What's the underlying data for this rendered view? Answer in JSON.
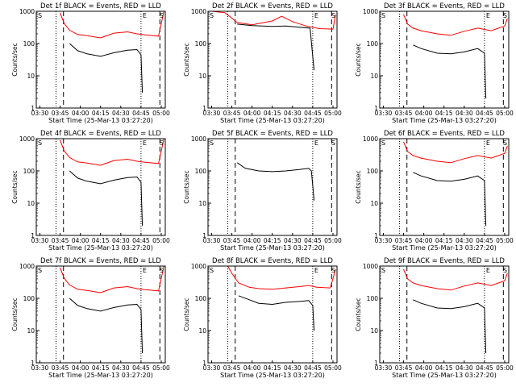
{
  "x_ticks": [
    "03:30",
    "03:45",
    "04:00",
    "04:15",
    "04:30",
    "04:45",
    "05:00"
  ],
  "y_ticks": [
    "1000",
    "100",
    "10",
    "1"
  ],
  "xlabel": "Start Time (25-Mar-13 03:27:20)",
  "ylabel": "Counts/sec",
  "markers": {
    "start": "S",
    "end": "E"
  },
  "colors": {
    "events": "#000000",
    "lld": "#ff0000"
  },
  "chart_data": [
    {
      "type": "line",
      "title": "Det 1f BLACK = Events, RED = LLD",
      "xlabel": "Start Time (25-Mar-13 03:27:20)",
      "ylabel": "Counts/sec",
      "xlim": [
        "03:27:20",
        "05:03:00"
      ],
      "ylim": [
        1,
        1000
      ],
      "yscale": "log",
      "series": [
        {
          "x": [
            "03:45",
            "03:48",
            "03:52",
            "03:58",
            "04:05",
            "04:15",
            "04:25",
            "04:35",
            "04:42",
            "04:45",
            "04:46",
            "04:47"
          ],
          "values": [
            null,
            null,
            100,
            60,
            48,
            40,
            52,
            62,
            65,
            45,
            3,
            null
          ]
        },
        {
          "x": [
            "03:45",
            "03:48",
            "03:52",
            "03:58",
            "04:05",
            "04:15",
            "04:25",
            "04:35",
            "04:42",
            "04:48",
            "04:58",
            "05:02"
          ],
          "values": [
            900,
            420,
            260,
            190,
            175,
            150,
            210,
            230,
            200,
            185,
            170,
            1000
          ]
        }
      ]
    },
    {
      "type": "line",
      "title": "Det 2f BLACK = Events, RED = LLD",
      "xlabel": "Start Time (25-Mar-13 03:27:20)",
      "ylabel": "Counts/sec",
      "xlim": [
        "03:27:20",
        "05:03:00"
      ],
      "ylim": [
        1,
        1000
      ],
      "yscale": "log",
      "series": [
        {
          "x": [
            "03:45",
            "03:49",
            "04:00",
            "04:15",
            "04:25",
            "04:35",
            "04:43",
            "04:45",
            "04:46"
          ],
          "values": [
            null,
            400,
            360,
            340,
            350,
            320,
            300,
            40,
            15
          ]
        },
        {
          "x": [
            "03:30",
            "03:40",
            "03:49",
            "04:00",
            "04:15",
            "04:22",
            "04:30",
            "04:40",
            "04:50",
            "05:00",
            "05:02"
          ],
          "values": [
            1000,
            900,
            450,
            380,
            500,
            700,
            480,
            350,
            290,
            280,
            800
          ]
        }
      ]
    },
    {
      "type": "line",
      "title": "Det 3f BLACK = Events, RED = LLD",
      "xlabel": "Start Time (25-Mar-13 03:27:20)",
      "ylabel": "Counts/sec",
      "xlim": [
        "03:27:20",
        "05:03:00"
      ],
      "ylim": [
        1,
        1000
      ],
      "yscale": "log",
      "series": [
        {
          "x": [
            "03:45",
            "03:48",
            "03:52",
            "03:58",
            "04:10",
            "04:20",
            "04:30",
            "04:40",
            "04:45",
            "04:46"
          ],
          "values": [
            null,
            null,
            90,
            70,
            50,
            48,
            55,
            70,
            50,
            2
          ]
        },
        {
          "x": [
            "03:45",
            "03:48",
            "03:52",
            "03:58",
            "04:10",
            "04:20",
            "04:30",
            "04:40",
            "04:50",
            "05:00",
            "05:02"
          ],
          "values": [
            800,
            400,
            300,
            250,
            200,
            180,
            240,
            300,
            250,
            350,
            600
          ]
        }
      ]
    },
    {
      "type": "line",
      "title": "Det 4f BLACK = Events, RED = LLD",
      "xlabel": "Start Time (25-Mar-13 03:27:20)",
      "ylabel": "Counts/sec",
      "xlim": [
        "03:27:20",
        "05:03:00"
      ],
      "ylim": [
        1,
        1000
      ],
      "yscale": "log",
      "series": [
        {
          "x": [
            "03:45",
            "03:48",
            "03:52",
            "03:58",
            "04:05",
            "04:15",
            "04:25",
            "04:35",
            "04:42",
            "04:45",
            "04:46"
          ],
          "values": [
            null,
            null,
            100,
            60,
            48,
            40,
            52,
            62,
            65,
            45,
            2
          ]
        },
        {
          "x": [
            "03:45",
            "03:48",
            "03:52",
            "03:58",
            "04:05",
            "04:15",
            "04:25",
            "04:35",
            "04:42",
            "04:48",
            "04:58",
            "05:02"
          ],
          "values": [
            900,
            420,
            260,
            190,
            175,
            150,
            210,
            230,
            200,
            185,
            170,
            1000
          ]
        }
      ]
    },
    {
      "type": "line",
      "title": "Det 5f BLACK = Events, RED = LLD",
      "xlabel": "Start Time (25-Mar-13 03:27:20)",
      "ylabel": "Counts/sec",
      "xlim": [
        "03:27:20",
        "05:03:00"
      ],
      "ylim": [
        1,
        1000
      ],
      "yscale": "log",
      "series": [
        {
          "x": [
            "03:47",
            "03:49",
            "03:55",
            "04:05",
            "04:15",
            "04:25",
            "04:35",
            "04:42",
            "04:44",
            "04:46"
          ],
          "values": [
            null,
            180,
            120,
            100,
            95,
            100,
            110,
            120,
            100,
            12
          ]
        }
      ]
    },
    {
      "type": "line",
      "title": "Det 6f BLACK = Events, RED = LLD",
      "xlabel": "Start Time (25-Mar-13 03:27:20)",
      "ylabel": "Counts/sec",
      "xlim": [
        "03:27:20",
        "05:03:00"
      ],
      "ylim": [
        1,
        1000
      ],
      "yscale": "log",
      "series": [
        {
          "x": [
            "03:45",
            "03:48",
            "03:52",
            "03:58",
            "04:10",
            "04:20",
            "04:30",
            "04:40",
            "04:45",
            "04:46"
          ],
          "values": [
            null,
            null,
            90,
            70,
            50,
            48,
            55,
            70,
            50,
            2
          ]
        },
        {
          "x": [
            "03:45",
            "03:48",
            "03:52",
            "03:58",
            "04:10",
            "04:20",
            "04:30",
            "04:40",
            "04:50",
            "05:00",
            "05:02"
          ],
          "values": [
            800,
            400,
            300,
            250,
            200,
            180,
            240,
            300,
            250,
            350,
            600
          ]
        }
      ]
    },
    {
      "type": "line",
      "title": "Det 7f BLACK = Events, RED = LLD",
      "xlabel": "Start Time (25-Mar-13 03:27:20)",
      "ylabel": "Counts/sec",
      "xlim": [
        "03:27:20",
        "05:03:00"
      ],
      "ylim": [
        1,
        1000
      ],
      "yscale": "log",
      "series": [
        {
          "x": [
            "03:45",
            "03:48",
            "03:52",
            "03:58",
            "04:05",
            "04:15",
            "04:25",
            "04:35",
            "04:42",
            "04:45",
            "04:46"
          ],
          "values": [
            null,
            null,
            100,
            60,
            48,
            40,
            52,
            62,
            65,
            45,
            2
          ]
        },
        {
          "x": [
            "03:45",
            "03:48",
            "03:52",
            "03:58",
            "04:05",
            "04:15",
            "04:25",
            "04:35",
            "04:42",
            "04:48",
            "04:58",
            "05:02"
          ],
          "values": [
            900,
            420,
            260,
            190,
            175,
            150,
            210,
            230,
            200,
            185,
            170,
            1000
          ]
        }
      ]
    },
    {
      "type": "line",
      "title": "Det 8f BLACK = Events, RED = LLD",
      "xlabel": "Start Time (25-Mar-13 03:27:20)",
      "ylabel": "Counts/sec",
      "xlim": [
        "03:27:20",
        "05:03:00"
      ],
      "ylim": [
        1,
        1000
      ],
      "yscale": "log",
      "series": [
        {
          "x": [
            "03:47",
            "03:50",
            "03:58",
            "04:05",
            "04:15",
            "04:25",
            "04:35",
            "04:42",
            "04:45",
            "04:46"
          ],
          "values": [
            null,
            120,
            90,
            70,
            65,
            75,
            80,
            85,
            60,
            10
          ]
        },
        {
          "x": [
            "03:42",
            "03:45",
            "03:50",
            "03:58",
            "04:05",
            "04:15",
            "04:25",
            "04:35",
            "04:42",
            "04:48",
            "04:58",
            "05:02"
          ],
          "values": [
            1000,
            600,
            300,
            220,
            200,
            190,
            210,
            230,
            250,
            220,
            210,
            800
          ]
        }
      ]
    },
    {
      "type": "line",
      "title": "Det 9f BLACK = Events, RED = LLD",
      "xlabel": "Start Time (25-Mar-13 03:27:20)",
      "ylabel": "Counts/sec",
      "xlim": [
        "03:27:20",
        "05:03:00"
      ],
      "ylim": [
        1,
        1000
      ],
      "yscale": "log",
      "series": [
        {
          "x": [
            "03:45",
            "03:48",
            "03:52",
            "03:58",
            "04:10",
            "04:20",
            "04:30",
            "04:40",
            "04:45",
            "04:46"
          ],
          "values": [
            null,
            null,
            90,
            70,
            50,
            48,
            55,
            70,
            50,
            2
          ]
        },
        {
          "x": [
            "03:45",
            "03:48",
            "03:52",
            "03:58",
            "04:10",
            "04:20",
            "04:30",
            "04:40",
            "04:50",
            "05:00",
            "05:02"
          ],
          "values": [
            800,
            400,
            300,
            250,
            200,
            180,
            240,
            300,
            250,
            350,
            600
          ]
        }
      ]
    }
  ]
}
